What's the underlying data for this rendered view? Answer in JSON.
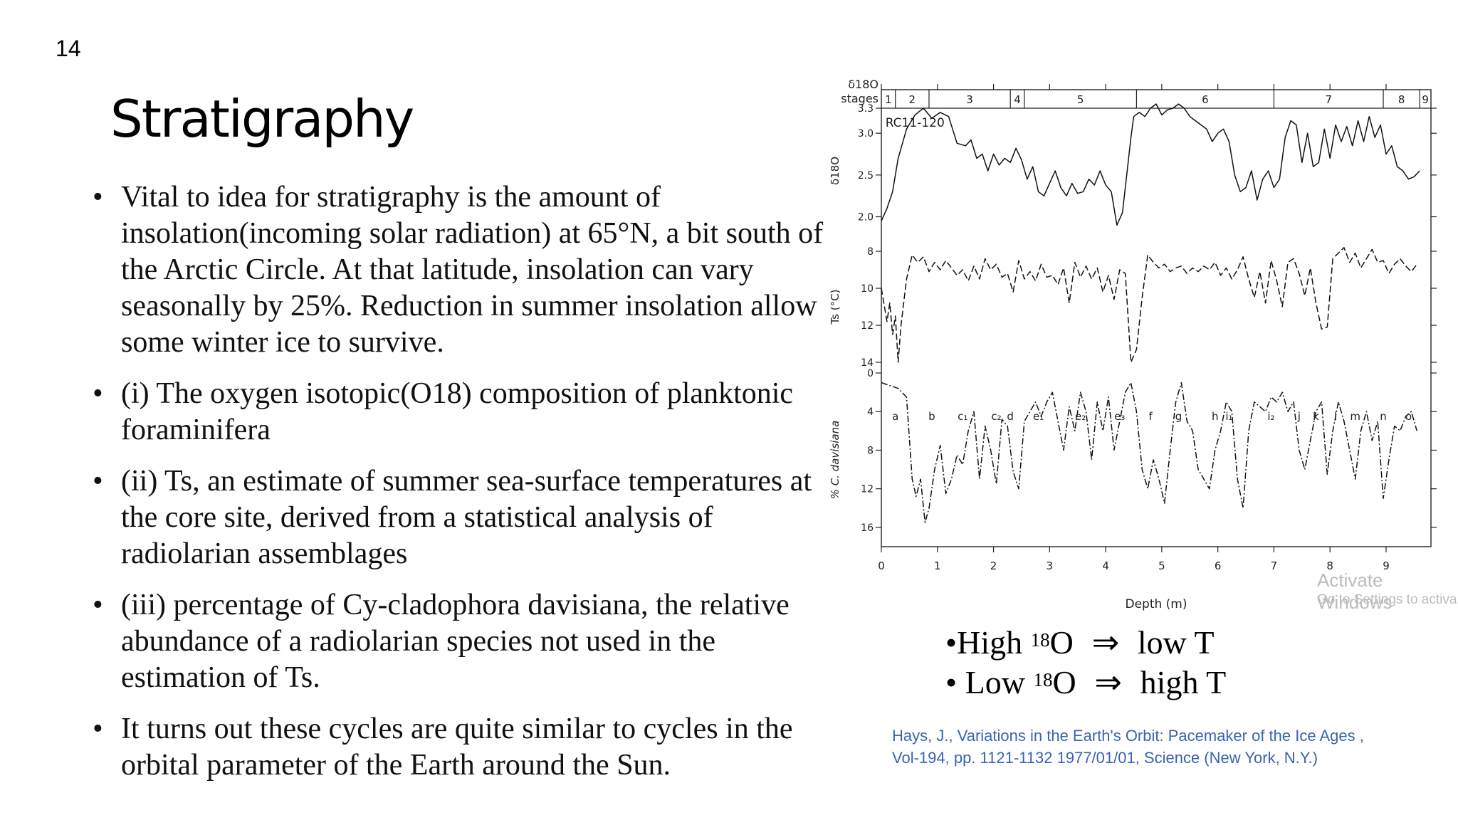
{
  "slide": {
    "number": "14",
    "title": "Stratigraphy",
    "bullets": [
      "Vital to idea for stratigraphy is the amount of insolation(incoming solar radiation) at 65°N, a bit south of the Arctic Circle. At that latitude, insolation can vary seasonally by 25%. Reduction in summer insolation allow some winter ice to survive.",
      "(i) The oxygen isotopic(O18) composition of planktonic foraminifera",
      "(ii) Ts, an estimate of summer sea-surface temperatures at the core site, derived from a statistical analysis of radiolarian assemblages",
      " (iii) percentage of Cy-cladophora davisiana, the relative abundance of a radiolarian species not used in the estimation of Ts.",
      "It turns out these cycles are quite similar to cycles in the orbital parameter of the Earth around the Sun."
    ],
    "rules": [
      {
        "prefix": "•High ",
        "sup": "18",
        "rest": "O",
        "arrow": "⇒",
        "result": "low T"
      },
      {
        "prefix": "• Low ",
        "sup": "18",
        "rest": "O",
        "arrow": "⇒",
        "result": "high T"
      }
    ],
    "citation_lines": [
      "Hays, J., Variations in the Earth's Orbit: Pacemaker of the Ice Ages ,",
      "Vol-194,  pp. 1121-1132  1977/01/01, Science (New York, N.Y.)"
    ],
    "watermark": {
      "line1": "Activate Windows",
      "line2": "Go to Settings to activa"
    }
  },
  "chart_data": {
    "type": "line",
    "core_label": "RC11-120",
    "xlabel": "Depth (m)",
    "x_ticks": [
      "0",
      "1",
      "2",
      "3",
      "4",
      "5",
      "6",
      "7",
      "8",
      "9"
    ],
    "xlim": [
      0,
      9.8
    ],
    "stages": {
      "label_line1": "δ18O",
      "label_line2": "stages",
      "names": [
        "1",
        "2",
        "3",
        "4",
        "5",
        "6",
        "7",
        "8",
        "9"
      ],
      "boundaries": [
        0,
        0.25,
        0.85,
        2.3,
        2.55,
        4.55,
        7.0,
        8.95,
        9.6,
        9.8
      ]
    },
    "panels": [
      {
        "name": "δ18O",
        "ylabel": "δ18O",
        "ylim": [
          3.3,
          1.8
        ],
        "inverted": true,
        "y_ticks": [
          "2.0",
          "2.5",
          "3.0",
          "3.3"
        ],
        "tick_values": [
          2.0,
          2.5,
          3.0,
          3.3
        ],
        "style": "solid",
        "x": [
          0,
          0.1,
          0.2,
          0.3,
          0.45,
          0.6,
          0.75,
          0.9,
          1.05,
          1.2,
          1.35,
          1.5,
          1.6,
          1.7,
          1.8,
          1.9,
          2.0,
          2.1,
          2.2,
          2.3,
          2.4,
          2.5,
          2.6,
          2.7,
          2.8,
          2.9,
          3.0,
          3.1,
          3.2,
          3.3,
          3.4,
          3.5,
          3.6,
          3.7,
          3.8,
          3.9,
          4.0,
          4.1,
          4.2,
          4.3,
          4.45,
          4.5,
          4.6,
          4.7,
          4.8,
          4.9,
          5.0,
          5.1,
          5.2,
          5.3,
          5.4,
          5.5,
          5.6,
          5.7,
          5.8,
          5.9,
          6.0,
          6.1,
          6.2,
          6.3,
          6.4,
          6.5,
          6.6,
          6.7,
          6.8,
          6.9,
          7.0,
          7.1,
          7.2,
          7.3,
          7.4,
          7.5,
          7.6,
          7.7,
          7.8,
          7.9,
          8.0,
          8.1,
          8.2,
          8.3,
          8.4,
          8.5,
          8.6,
          8.7,
          8.8,
          8.9,
          9.0,
          9.1,
          9.2,
          9.3,
          9.4,
          9.5,
          9.6
        ],
        "y": [
          1.95,
          2.1,
          2.3,
          2.7,
          3.05,
          3.22,
          3.3,
          3.18,
          3.25,
          3.2,
          2.88,
          2.85,
          2.92,
          2.7,
          2.75,
          2.55,
          2.75,
          2.62,
          2.7,
          2.65,
          2.82,
          2.68,
          2.45,
          2.6,
          2.3,
          2.25,
          2.4,
          2.55,
          2.35,
          2.25,
          2.4,
          2.28,
          2.3,
          2.45,
          2.38,
          2.55,
          2.38,
          2.3,
          1.9,
          2.05,
          2.95,
          3.2,
          3.25,
          3.2,
          3.3,
          3.35,
          3.22,
          3.28,
          3.3,
          3.35,
          3.3,
          3.2,
          3.15,
          3.1,
          3.05,
          2.9,
          3.0,
          3.05,
          2.9,
          2.5,
          2.3,
          2.35,
          2.55,
          2.2,
          2.45,
          2.55,
          2.35,
          2.45,
          2.95,
          3.15,
          3.1,
          2.65,
          3.0,
          2.6,
          2.65,
          3.05,
          2.7,
          3.1,
          2.9,
          3.08,
          2.85,
          3.15,
          2.9,
          3.2,
          2.95,
          3.1,
          2.75,
          2.85,
          2.6,
          2.55,
          2.45,
          2.48,
          2.55
        ],
        "series_label_x": 0.6
      },
      {
        "name": "Ts",
        "ylabel": "Ts (°C)",
        "ylim": [
          7.5,
          14.5
        ],
        "inverted": false,
        "y_ticks": [
          "8",
          "10",
          "12",
          "14"
        ],
        "tick_values": [
          8,
          10,
          12,
          14
        ],
        "style": "dashed",
        "x": [
          0,
          0.1,
          0.15,
          0.2,
          0.25,
          0.3,
          0.35,
          0.45,
          0.55,
          0.65,
          0.75,
          0.85,
          0.95,
          1.05,
          1.15,
          1.25,
          1.35,
          1.45,
          1.55,
          1.65,
          1.75,
          1.85,
          1.95,
          2.05,
          2.15,
          2.25,
          2.35,
          2.45,
          2.55,
          2.65,
          2.75,
          2.85,
          2.95,
          3.05,
          3.15,
          3.25,
          3.35,
          3.45,
          3.55,
          3.65,
          3.75,
          3.85,
          3.95,
          4.05,
          4.15,
          4.25,
          4.35,
          4.45,
          4.55,
          4.65,
          4.75,
          4.85,
          4.95,
          5.05,
          5.15,
          5.25,
          5.35,
          5.45,
          5.55,
          5.65,
          5.75,
          5.85,
          5.95,
          6.05,
          6.15,
          6.25,
          6.35,
          6.45,
          6.55,
          6.65,
          6.75,
          6.85,
          6.95,
          7.05,
          7.15,
          7.25,
          7.35,
          7.45,
          7.55,
          7.65,
          7.75,
          7.85,
          7.95,
          8.05,
          8.15,
          8.25,
          8.35,
          8.45,
          8.55,
          8.65,
          8.75,
          8.85,
          8.95,
          9.05,
          9.15,
          9.25,
          9.35,
          9.45,
          9.55
        ],
        "y": [
          10,
          11.8,
          10.8,
          12.5,
          11.5,
          14,
          12,
          9.5,
          8.2,
          8.6,
          8.3,
          9.1,
          8.6,
          9,
          8.5,
          8.9,
          9.3,
          9,
          9.6,
          8.8,
          9.5,
          8.4,
          9,
          8.7,
          9.4,
          9.2,
          10.2,
          8.5,
          9.5,
          9.1,
          9.6,
          8.7,
          9.4,
          9.3,
          9.8,
          8.9,
          10.8,
          8.6,
          9.4,
          8.8,
          9.5,
          8.9,
          10.2,
          9.3,
          10.6,
          9,
          9.2,
          14,
          13.3,
          10.5,
          8.2,
          8.6,
          8.9,
          8.7,
          9.1,
          8.9,
          8.8,
          9.2,
          8.9,
          9.1,
          8.8,
          9,
          8.6,
          9.3,
          8.9,
          9.5,
          9,
          8.3,
          9.5,
          10.5,
          9.1,
          10.8,
          8.5,
          9.6,
          11,
          8.6,
          8.4,
          9.2,
          10.4,
          8.9,
          10.8,
          12.2,
          12.1,
          8.4,
          8.1,
          7.8,
          8.6,
          8.1,
          8.9,
          8.4,
          7.9,
          8.6,
          8.5,
          9.2,
          8.7,
          8.4,
          8.8,
          9.1,
          8.7
        ]
      },
      {
        "name": "% C. davisiana",
        "ylabel": "% C. davisiana",
        "ylim": [
          0,
          18
        ],
        "inverted": true,
        "y_ticks": [
          "0",
          "4",
          "8",
          "12",
          "16"
        ],
        "tick_values": [
          0,
          4,
          8,
          12,
          16
        ],
        "style": "dashdot",
        "x": [
          0,
          0.15,
          0.3,
          0.45,
          0.55,
          0.62,
          0.7,
          0.78,
          0.85,
          0.95,
          1.05,
          1.15,
          1.25,
          1.35,
          1.45,
          1.55,
          1.65,
          1.75,
          1.85,
          1.95,
          2.05,
          2.15,
          2.25,
          2.35,
          2.45,
          2.55,
          2.65,
          2.75,
          2.85,
          2.95,
          3.05,
          3.15,
          3.25,
          3.35,
          3.45,
          3.55,
          3.65,
          3.75,
          3.85,
          3.95,
          4.05,
          4.15,
          4.25,
          4.35,
          4.45,
          4.55,
          4.65,
          4.75,
          4.85,
          4.95,
          5.05,
          5.15,
          5.25,
          5.35,
          5.45,
          5.55,
          5.65,
          5.75,
          5.85,
          5.95,
          6.05,
          6.15,
          6.25,
          6.35,
          6.45,
          6.55,
          6.65,
          6.75,
          6.85,
          6.95,
          7.05,
          7.15,
          7.25,
          7.35,
          7.45,
          7.55,
          7.65,
          7.75,
          7.85,
          7.95,
          8.05,
          8.15,
          8.25,
          8.35,
          8.45,
          8.55,
          8.65,
          8.75,
          8.85,
          8.95,
          9.05,
          9.15,
          9.25,
          9.35,
          9.45,
          9.55
        ],
        "y": [
          1,
          1.3,
          1.6,
          2.5,
          11,
          12.8,
          11,
          15.5,
          14,
          10,
          7.5,
          12.5,
          11,
          8.5,
          9.5,
          6,
          4,
          11,
          5.5,
          8,
          11.5,
          4.8,
          5.5,
          10.2,
          12,
          5,
          4,
          3,
          4.5,
          3,
          2,
          5,
          8,
          3.5,
          6,
          2,
          4,
          9,
          3,
          6,
          2.5,
          8,
          5,
          2,
          1,
          4,
          10,
          12,
          9,
          11,
          13.5,
          8,
          3,
          1,
          5,
          6,
          10,
          11,
          12,
          8,
          6,
          3,
          4,
          11,
          14,
          6,
          3,
          3.5,
          4,
          2.5,
          3,
          2,
          4,
          3,
          8,
          10,
          7,
          4,
          3,
          10.5,
          6,
          3,
          5,
          8,
          11,
          6,
          4,
          7,
          5,
          13,
          9,
          5.5,
          6,
          4.5,
          4,
          6
        ],
        "zone_labels": [
          {
            "text": "a",
            "x": 0.25
          },
          {
            "text": "b",
            "x": 0.9
          },
          {
            "text": "c₁",
            "x": 1.45
          },
          {
            "text": "c₂",
            "x": 2.05
          },
          {
            "text": "d",
            "x": 2.3
          },
          {
            "text": "e₁",
            "x": 2.8
          },
          {
            "text": "e₂",
            "x": 3.55
          },
          {
            "text": "e₃",
            "x": 4.25
          },
          {
            "text": "f",
            "x": 4.8
          },
          {
            "text": "g",
            "x": 5.3
          },
          {
            "text": "h",
            "x": 5.95
          },
          {
            "text": "i₁",
            "x": 6.2
          },
          {
            "text": "i₂",
            "x": 6.95
          },
          {
            "text": "j",
            "x": 7.45
          },
          {
            "text": "k",
            "x": 7.75
          },
          {
            "text": "l",
            "x": 8.1
          },
          {
            "text": "m",
            "x": 8.45
          },
          {
            "text": "n",
            "x": 8.95
          },
          {
            "text": "o",
            "x": 9.4
          }
        ]
      }
    ]
  }
}
